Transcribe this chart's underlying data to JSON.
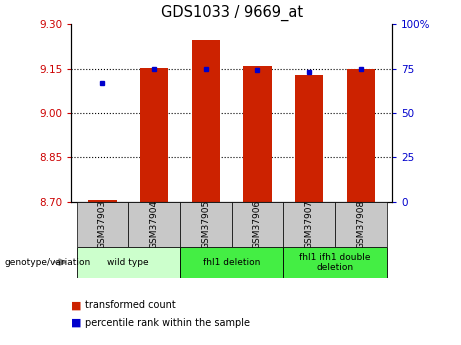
{
  "title": "GDS1033 / 9669_at",
  "samples": [
    "GSM37903",
    "GSM37904",
    "GSM37905",
    "GSM37906",
    "GSM37907",
    "GSM37908"
  ],
  "red_values": [
    8.705,
    9.152,
    9.245,
    9.158,
    9.127,
    9.148
  ],
  "blue_values": [
    67,
    75,
    75,
    74,
    73,
    75
  ],
  "ylim_left": [
    8.7,
    9.3
  ],
  "ylim_right": [
    0,
    100
  ],
  "left_ticks": [
    8.7,
    8.85,
    9.0,
    9.15,
    9.3
  ],
  "right_ticks": [
    0,
    25,
    50,
    75,
    100
  ],
  "right_tick_labels": [
    "0",
    "25",
    "50",
    "75",
    "100%"
  ],
  "left_tick_color": "#cc0000",
  "right_tick_color": "#0000cc",
  "bar_color": "#cc2200",
  "dot_color": "#0000cc",
  "bar_bottom": 8.7,
  "bar_width": 0.55,
  "legend_red_label": "transformed count",
  "legend_blue_label": "percentile rank within the sample",
  "genotype_label": "genotype/variation",
  "group_defs": [
    [
      0,
      1,
      "wild type",
      "#ccffcc"
    ],
    [
      2,
      3,
      "fhl1 deletion",
      "#44ee44"
    ],
    [
      4,
      5,
      "fhl1 ifh1 double\ndeletion",
      "#44ee44"
    ]
  ]
}
